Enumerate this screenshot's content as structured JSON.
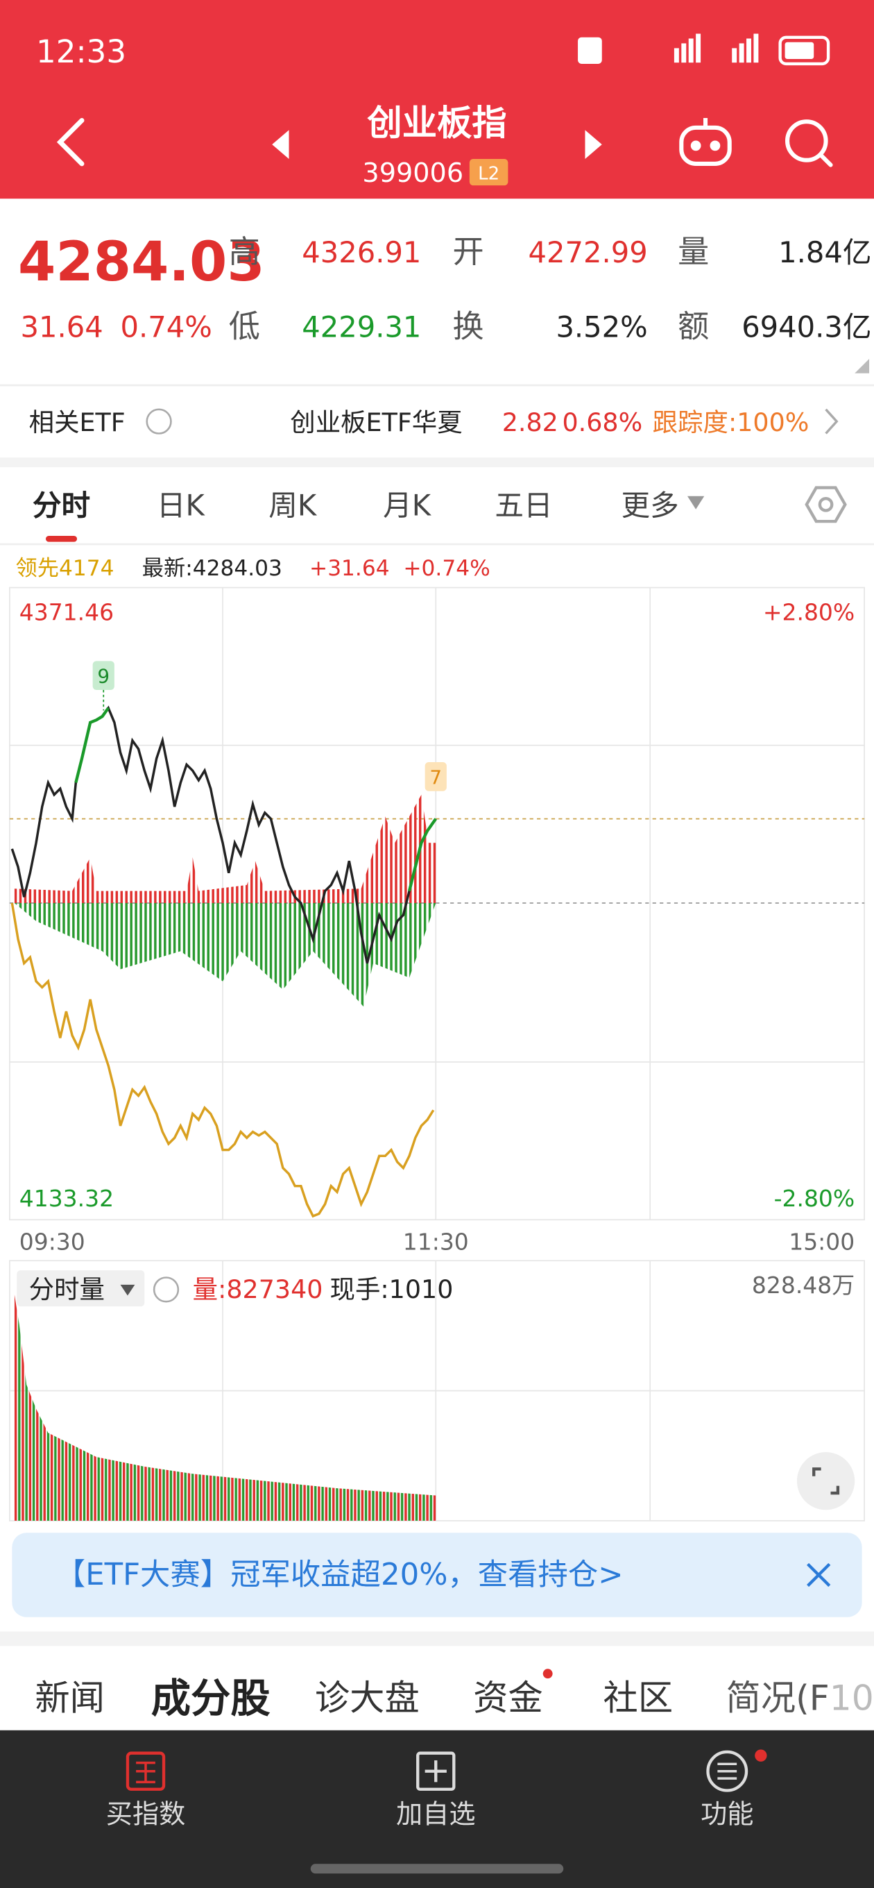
{
  "status_bar": {
    "time": "12:33"
  },
  "header": {
    "title": "创业板指",
    "code": "399006",
    "badge": "L2"
  },
  "quote": {
    "price": "4284.03",
    "change": "31.64",
    "change_pct": "0.74%",
    "stats": [
      {
        "label": "高",
        "value": "4326.91"
      },
      {
        "label": "开",
        "value": "4272.99"
      },
      {
        "label": "量",
        "value": "1.84亿"
      },
      {
        "label": "低",
        "value": "4229.31"
      },
      {
        "label": "换",
        "value": "3.52%"
      },
      {
        "label": "额",
        "value": "6940.3亿"
      }
    ]
  },
  "etf": {
    "label": "相关ETF",
    "name": "创业板ETF华夏",
    "price": "2.82",
    "change_pct": "0.68%",
    "tracking": "跟踪度:100%"
  },
  "tabs": [
    "分时",
    "日K",
    "周K",
    "月K",
    "五日",
    "更多"
  ],
  "chart_info": {
    "lead": "领先4174",
    "latest": "最新:4284.03",
    "change": "+31.64",
    "change_pct": "+0.74%"
  },
  "chart": {
    "y_top": "4371.46",
    "pct_top": "+2.80%",
    "y_bottom": "4133.32",
    "pct_bottom": "-2.80%",
    "marker_high": "9",
    "marker_last": "7",
    "times": [
      "09:30",
      "11:30",
      "15:00"
    ]
  },
  "volume": {
    "label": "分时量",
    "volume": "量:827340",
    "current": "现手:1010",
    "max": "828.48万"
  },
  "banner": {
    "text": "【ETF大赛】冠军收益超20%，查看持仓>"
  },
  "section_tabs": [
    "新闻",
    "成分股",
    "诊大盘",
    "资金",
    "社区",
    "简况(F10"
  ],
  "bottom_nav": [
    "买指数",
    "加自选",
    "功能"
  ]
}
